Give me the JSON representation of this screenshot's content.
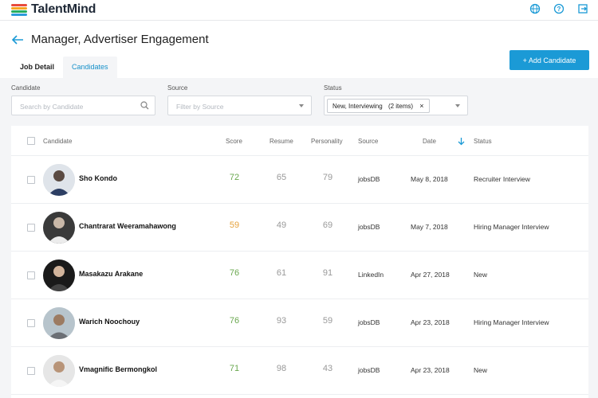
{
  "app": {
    "name": "TalentMind"
  },
  "header": {
    "title": "Manager, Advertiser Engagement",
    "tabs": [
      {
        "label": "Job Detail",
        "active": false
      },
      {
        "label": "Candidates",
        "active": true
      }
    ],
    "add_button": "+ Add Candidate"
  },
  "filters": {
    "candidate": {
      "label": "Candidate",
      "placeholder": "Search by Candidate"
    },
    "source": {
      "label": "Source",
      "placeholder": "Filter by Source"
    },
    "status": {
      "label": "Status",
      "chip": "New, Interviewing",
      "chip_count": "(2 items)",
      "chip_remove": "×"
    }
  },
  "table": {
    "columns": [
      "Candidate",
      "Score",
      "Resume",
      "Personality",
      "Source",
      "Date",
      "Status"
    ],
    "sort_column": "Date",
    "rows": [
      {
        "name": "Sho Kondo",
        "score": "72",
        "resume": "65",
        "personality": "79",
        "source": "jobsDB",
        "date": "May 8, 2018",
        "status": "Recruiter Interview"
      },
      {
        "name": "Chantrarat Weeramahawong",
        "score": "59",
        "resume": "49",
        "personality": "69",
        "source": "jobsDB",
        "date": "May 7, 2018",
        "status": "Hiring Manager Interview"
      },
      {
        "name": "Masakazu Arakane",
        "score": "76",
        "resume": "61",
        "personality": "91",
        "source": "LinkedIn",
        "date": "Apr 27, 2018",
        "status": "New"
      },
      {
        "name": "Warich Noochouy",
        "score": "76",
        "resume": "93",
        "personality": "59",
        "source": "jobsDB",
        "date": "Apr 23, 2018",
        "status": "Hiring Manager Interview"
      },
      {
        "name": "Vmagnific Bermongkol",
        "score": "71",
        "resume": "98",
        "personality": "43",
        "source": "jobsDB",
        "date": "Apr 23, 2018",
        "status": "New"
      }
    ]
  },
  "colors": {
    "accent": "#1b9ad6",
    "score_high": "#6aa84f",
    "score_mid": "#e6a23c",
    "muted_value": "#999999"
  },
  "icons": [
    "globe-icon",
    "help-icon",
    "logout-icon",
    "back-arrow-icon",
    "search-icon",
    "sort-down-icon"
  ]
}
